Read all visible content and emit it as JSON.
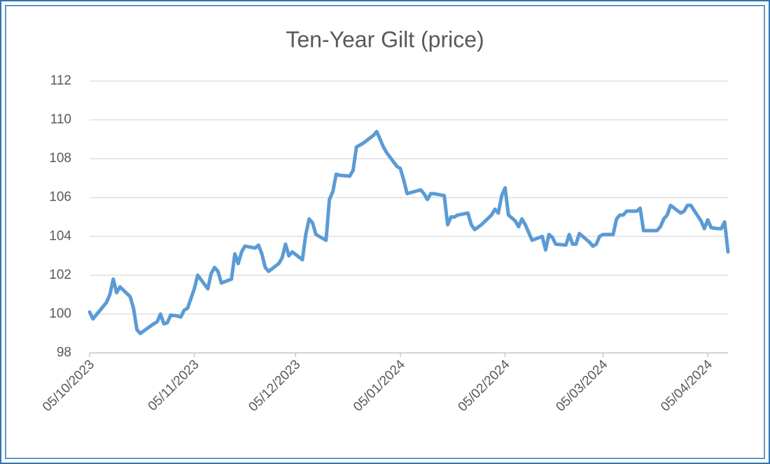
{
  "chart_data": {
    "type": "line",
    "title": "Ten-Year Gilt (price)",
    "x": [
      "2023-10-05",
      "2023-10-06",
      "2023-10-10",
      "2023-10-11",
      "2023-10-12",
      "2023-10-13",
      "2023-10-14",
      "2023-10-17",
      "2023-10-18",
      "2023-10-19",
      "2023-10-20",
      "2023-10-24",
      "2023-10-25",
      "2023-10-26",
      "2023-10-27",
      "2023-10-28",
      "2023-10-29",
      "2023-10-31",
      "2023-11-01",
      "2023-11-02",
      "2023-11-03",
      "2023-11-05",
      "2023-11-06",
      "2023-11-09",
      "2023-11-10",
      "2023-11-11",
      "2023-11-12",
      "2023-11-13",
      "2023-11-16",
      "2023-11-17",
      "2023-11-18",
      "2023-11-19",
      "2023-11-20",
      "2023-11-23",
      "2023-11-24",
      "2023-11-25",
      "2023-11-26",
      "2023-11-27",
      "2023-11-30",
      "2023-12-01",
      "2023-12-02",
      "2023-12-03",
      "2023-12-04",
      "2023-12-07",
      "2023-12-08",
      "2023-12-09",
      "2023-12-10",
      "2023-12-11",
      "2023-12-14",
      "2023-12-15",
      "2023-12-16",
      "2023-12-17",
      "2023-12-18",
      "2023-12-21",
      "2023-12-22",
      "2023-12-23",
      "2023-12-24",
      "2023-12-25",
      "2023-12-28",
      "2023-12-29",
      "2023-12-30",
      "2023-12-31",
      "2024-01-01",
      "2024-01-04",
      "2024-01-05",
      "2024-01-06",
      "2024-01-07",
      "2024-01-08",
      "2024-01-11",
      "2024-01-12",
      "2024-01-13",
      "2024-01-14",
      "2024-01-15",
      "2024-01-18",
      "2024-01-19",
      "2024-01-20",
      "2024-01-21",
      "2024-01-22",
      "2024-01-25",
      "2024-01-26",
      "2024-01-27",
      "2024-01-29",
      "2024-02-01",
      "2024-02-02",
      "2024-02-03",
      "2024-02-04",
      "2024-02-05",
      "2024-02-06",
      "2024-02-08",
      "2024-02-09",
      "2024-02-10",
      "2024-02-11",
      "2024-02-12",
      "2024-02-13",
      "2024-02-16",
      "2024-02-17",
      "2024-02-18",
      "2024-02-19",
      "2024-02-20",
      "2024-02-23",
      "2024-02-24",
      "2024-02-25",
      "2024-02-26",
      "2024-02-27",
      "2024-03-01",
      "2024-03-02",
      "2024-03-03",
      "2024-03-04",
      "2024-03-05",
      "2024-03-08",
      "2024-03-09",
      "2024-03-10",
      "2024-03-11",
      "2024-03-12",
      "2024-03-15",
      "2024-03-16",
      "2024-03-17",
      "2024-03-21",
      "2024-03-22",
      "2024-03-23",
      "2024-03-24",
      "2024-03-25",
      "2024-03-28",
      "2024-03-29",
      "2024-03-30",
      "2024-03-31",
      "2024-04-03",
      "2024-04-04",
      "2024-04-05",
      "2024-04-06",
      "2024-04-08",
      "2024-04-09",
      "2024-04-10",
      "2024-04-11"
    ],
    "series": [
      {
        "name": "Ten-Year Gilt",
        "color": "#5b9bd5",
        "values": [
          100.1,
          99.75,
          100.6,
          101.0,
          101.8,
          101.1,
          101.4,
          100.9,
          100.3,
          99.2,
          99.0,
          99.5,
          99.6,
          100.0,
          99.5,
          99.55,
          99.95,
          99.9,
          99.85,
          100.2,
          100.3,
          101.3,
          102.0,
          101.3,
          102.1,
          102.4,
          102.2,
          101.6,
          101.8,
          103.1,
          102.6,
          103.2,
          103.5,
          103.4,
          103.55,
          103.1,
          102.4,
          102.2,
          102.6,
          102.9,
          103.6,
          103.0,
          103.2,
          102.8,
          104.1,
          104.9,
          104.7,
          104.1,
          103.8,
          105.9,
          106.3,
          107.2,
          107.15,
          107.1,
          107.4,
          108.6,
          108.7,
          108.8,
          109.2,
          109.4,
          109.0,
          108.6,
          108.3,
          107.6,
          107.5,
          106.9,
          106.2,
          106.25,
          106.4,
          106.2,
          105.9,
          106.2,
          106.2,
          106.1,
          104.6,
          105.0,
          105.0,
          105.1,
          105.2,
          104.6,
          104.35,
          104.6,
          105.1,
          105.4,
          105.2,
          106.1,
          106.5,
          105.1,
          104.8,
          104.5,
          104.9,
          104.6,
          104.2,
          103.8,
          104.0,
          103.3,
          104.1,
          103.95,
          103.6,
          103.55,
          104.1,
          103.6,
          103.6,
          104.15,
          103.7,
          103.5,
          103.6,
          104.0,
          104.1,
          104.1,
          104.9,
          105.1,
          105.1,
          105.3,
          105.3,
          105.45,
          104.3,
          104.3,
          104.5,
          104.9,
          105.1,
          105.6,
          105.2,
          105.3,
          105.6,
          105.6,
          104.8,
          104.4,
          104.85,
          104.45,
          104.4,
          104.4,
          104.75,
          103.2
        ]
      }
    ],
    "xlim": [
      "2023-10-05",
      "2024-04-11"
    ],
    "xticks": [
      {
        "value": "2023-10-05",
        "label": "05/10/2023"
      },
      {
        "value": "2023-11-05",
        "label": "05/11/2023"
      },
      {
        "value": "2023-12-05",
        "label": "05/12/2023"
      },
      {
        "value": "2024-01-05",
        "label": "05/01/2024"
      },
      {
        "value": "2024-02-05",
        "label": "05/02/2024"
      },
      {
        "value": "2024-03-05",
        "label": "05/03/2024"
      },
      {
        "value": "2024-04-05",
        "label": "05/04/2024"
      }
    ],
    "ylim": [
      98,
      112
    ],
    "yticks": [
      98,
      100,
      102,
      104,
      106,
      108,
      110,
      112
    ],
    "grid": true
  }
}
